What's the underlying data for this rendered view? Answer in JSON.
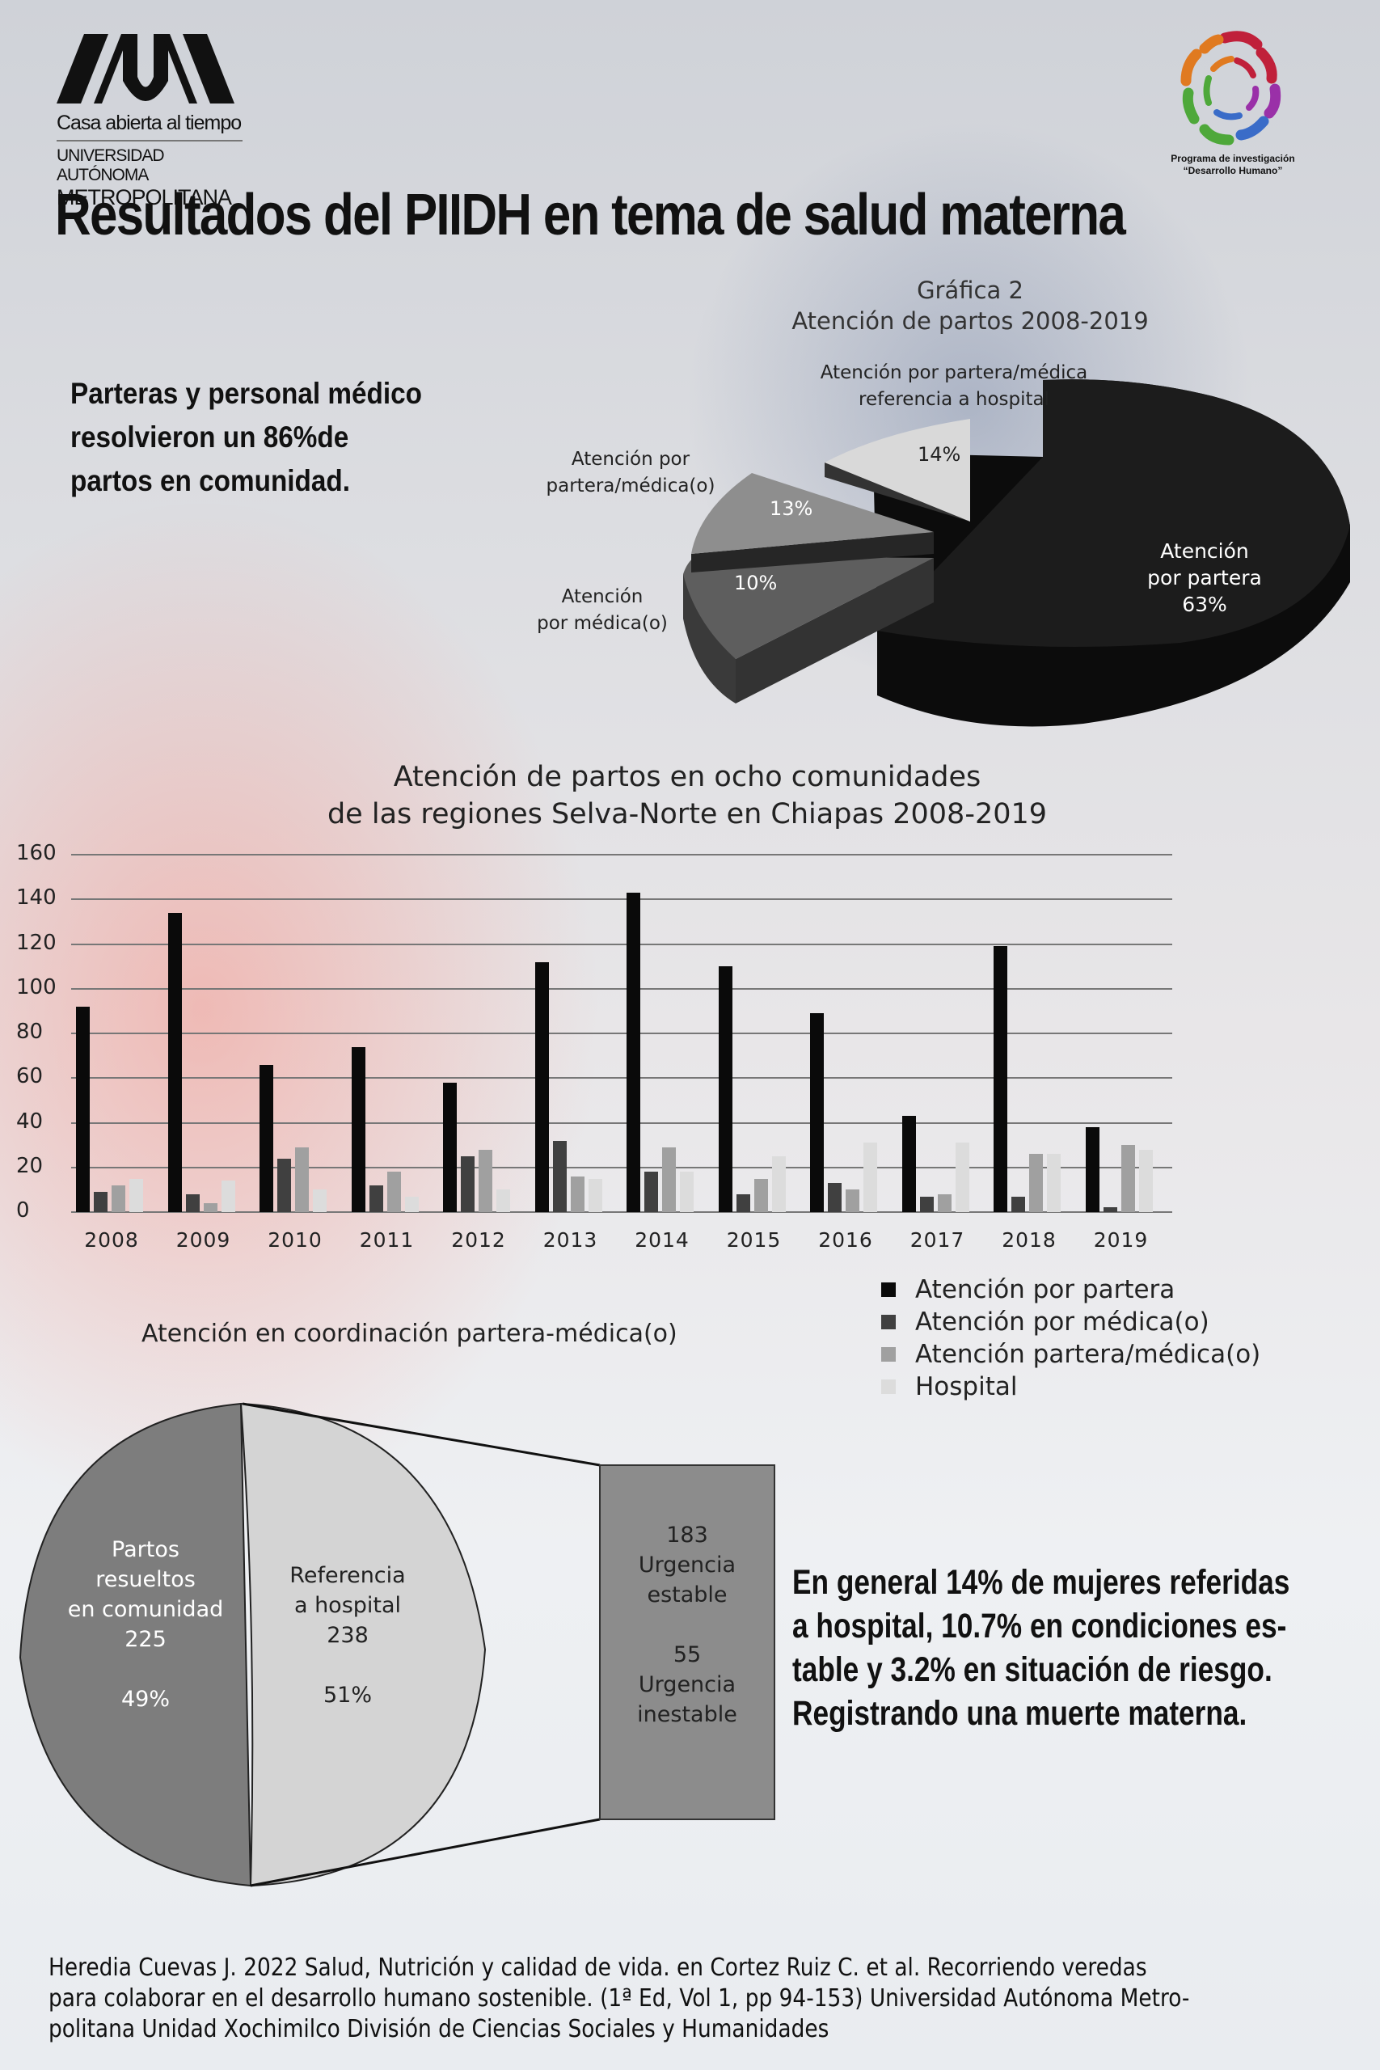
{
  "header": {
    "uam_logo": {
      "line1": "Casa abierta al tiempo",
      "line2": "UNIVERSIDAD AUTÓNOMA",
      "line3": "METROPOLITANA"
    },
    "program_logo": {
      "line1": "Programa de investigación",
      "line2": "“Desarrollo Humano”"
    },
    "title": "Resultados del PIIDH en tema de salud materna"
  },
  "lead_text": [
    "Parteras y personal médico",
    "resolvieron un 86%de",
    "partos en comunidad."
  ],
  "callout_text": [
    "En general 14% de mujeres referidas",
    "a hospital, 10.7% en condiciones es-",
    "table y 3.2% en situación de riesgo.",
    "Registrando una muerte materna."
  ],
  "reference": [
    "Heredia Cuevas J. 2022 Salud, Nutrición y calidad de vida. en Cortez Ruiz C. et al.  Recorriendo veredas",
    "para colaborar en el desarrollo humano sostenible. (1ª Ed, Vol 1, pp 94-153) Universidad Autónoma Metro-",
    "politana Unidad Xochimilco División de Ciencias Sociales y Humanidades"
  ],
  "chart_data": [
    {
      "type": "pie",
      "title": "Gráfica 2",
      "subtitle": "Atención de partos 2008-2019",
      "labels": [
        "Atención por partera",
        "Atención por médica(o)",
        "Atención por partera/médica(o)",
        "Atención por partera/médica referencia a hospital"
      ],
      "display_labels": {
        "partera": [
          "Atención",
          "por partera",
          "63%"
        ],
        "medica": [
          "Atención",
          "por médica(o)"
        ],
        "partera_medica": [
          "Atención por",
          "partera/médica(o)"
        ],
        "hospital": [
          "Atención por partera/médica",
          "referencia a hospital"
        ]
      },
      "values": [
        63,
        10,
        13,
        14
      ],
      "value_labels": [
        "63%",
        "10%",
        "13%",
        "14%"
      ],
      "colors": [
        "#141414",
        "#5a5a5a",
        "#8c8c8c",
        "#d6d6d6"
      ],
      "style": "3d-exploded"
    },
    {
      "type": "bar",
      "title": "Atención de partos en ocho comunidades",
      "subtitle": "de las regiones Selva-Norte en Chiapas 2008-2019",
      "categories": [
        "2008",
        "2009",
        "2010",
        "2011",
        "2012",
        "2013",
        "2014",
        "2015",
        "2016",
        "2017",
        "2018",
        "2019"
      ],
      "series": [
        {
          "name": "Atención por partera",
          "color": "#0a0a0a",
          "values": [
            92,
            134,
            66,
            74,
            58,
            112,
            143,
            110,
            89,
            43,
            119,
            38
          ]
        },
        {
          "name": "Atención por médica(o)",
          "color": "#404040",
          "values": [
            9,
            8,
            24,
            12,
            25,
            32,
            18,
            8,
            13,
            7,
            7,
            2
          ]
        },
        {
          "name": "Atención partera/médica(o)",
          "color": "#a0a0a0",
          "values": [
            12,
            4,
            29,
            18,
            28,
            16,
            29,
            15,
            10,
            8,
            26,
            30
          ]
        },
        {
          "name": "Hospital",
          "color": "#dcdcdc",
          "values": [
            15,
            14,
            10,
            7,
            10,
            15,
            18,
            25,
            31,
            31,
            26,
            28
          ]
        }
      ],
      "yticks": [
        "0",
        "20",
        "40",
        "60",
        "80",
        "100",
        "120",
        "140",
        "160"
      ],
      "ylim": [
        0,
        160
      ],
      "xlabel": "",
      "ylabel": "",
      "grid": true,
      "legend_position": "bottom-right"
    },
    {
      "type": "pie",
      "title": "Atención en coordinación partera-médica(o)",
      "labels": [
        "Partos resueltos en comunidad",
        "Referencia a hospital"
      ],
      "display_labels": {
        "comunidad": [
          "Partos",
          "resueltos",
          "en comunidad",
          "225",
          "",
          "49%"
        ],
        "hospital": [
          "Referencia",
          "a hospital",
          "238",
          "",
          "51%"
        ]
      },
      "values": [
        225,
        238
      ],
      "percent": [
        49,
        51
      ],
      "colors": [
        "#7d7d7d",
        "#d4d4d4"
      ],
      "breakdown": {
        "parent": "Referencia a hospital",
        "labels": [
          "Urgencia estable",
          "Urgencia inestable"
        ],
        "values": [
          183,
          55
        ],
        "text": [
          "183",
          "Urgencia",
          "estable",
          "",
          "55",
          "Urgencia",
          "inestable"
        ]
      }
    }
  ]
}
